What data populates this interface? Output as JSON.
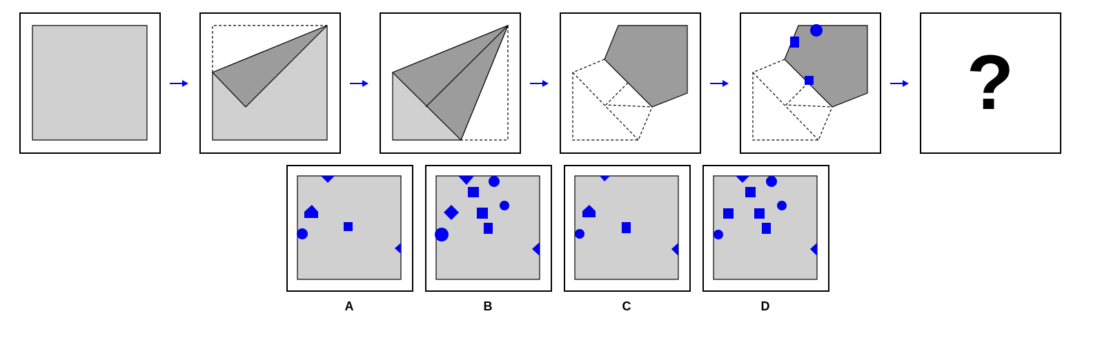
{
  "colors": {
    "paper": "#d0d0d0",
    "folded": "#9c9c9c",
    "hole": "#0000ee",
    "arrow": "#0000ee",
    "frame": "#000000"
  },
  "question_mark": "?",
  "options": [
    {
      "label": "A"
    },
    {
      "label": "B"
    },
    {
      "label": "C"
    },
    {
      "label": "D"
    }
  ]
}
